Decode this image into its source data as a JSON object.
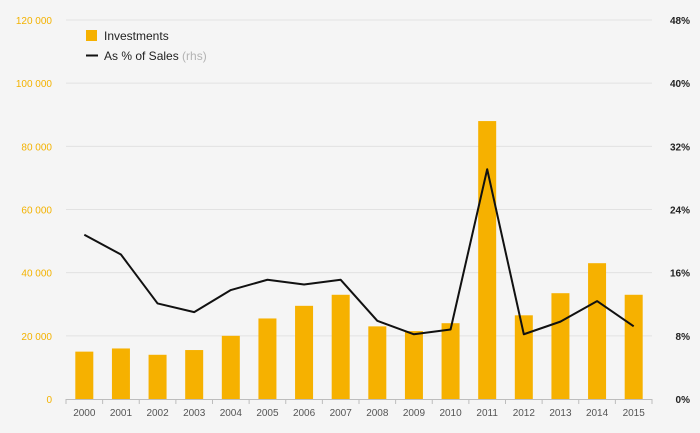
{
  "chart_data": {
    "type": "bar+line",
    "categories": [
      "2000",
      "2001",
      "2002",
      "2003",
      "2004",
      "2005",
      "2006",
      "2007",
      "2008",
      "2009",
      "2010",
      "2011",
      "2012",
      "2013",
      "2014",
      "2015"
    ],
    "series": [
      {
        "name": "Investments",
        "type": "bar",
        "axis": "left",
        "color": "#f6b100",
        "values": [
          15000,
          16000,
          14000,
          15500,
          20000,
          25500,
          29500,
          33000,
          23000,
          21500,
          24000,
          88000,
          26500,
          33500,
          43000,
          33000
        ]
      },
      {
        "name": "As % of Sales",
        "type": "line",
        "axis": "right",
        "color": "#111111",
        "values": [
          20.8,
          18.3,
          12.1,
          11.0,
          13.8,
          15.1,
          14.5,
          15.1,
          9.9,
          8.2,
          8.8,
          29.1,
          8.2,
          9.8,
          12.4,
          9.2
        ]
      }
    ],
    "legend": {
      "position": "top-left",
      "items": [
        {
          "label": "Investments",
          "note": ""
        },
        {
          "label": "As % of Sales",
          "note": "(rhs)"
        }
      ]
    },
    "y_left": {
      "ylim": [
        0,
        120000
      ],
      "ticks": [
        0,
        20000,
        40000,
        60000,
        80000,
        100000,
        120000
      ],
      "tick_labels": [
        "0",
        "20 000",
        "40 000",
        "60 000",
        "80 000",
        "100 000",
        "120 000"
      ],
      "color": "#f3b200"
    },
    "y_right": {
      "ylim": [
        0,
        48
      ],
      "ticks": [
        0,
        8,
        16,
        24,
        32,
        40,
        48
      ],
      "tick_labels": [
        "0%",
        "8%",
        "16%",
        "24%",
        "32%",
        "40%",
        "48%"
      ],
      "color": "#222222"
    },
    "grid": true,
    "title": "",
    "xlabel": "",
    "ylabel": ""
  }
}
